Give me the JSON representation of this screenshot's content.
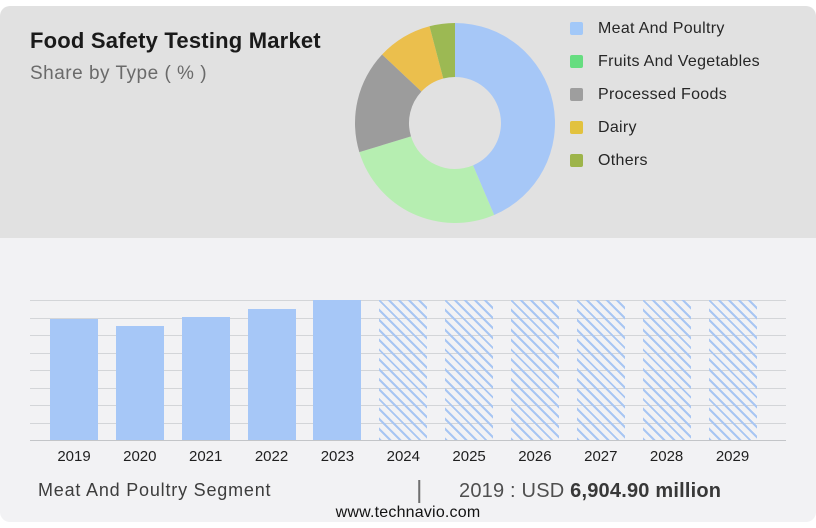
{
  "header": {
    "title": "Food Safety Testing Market",
    "subtitle": "Share by Type ( % )"
  },
  "colors": {
    "top_panel_bg": "#e1e1e1",
    "bottom_panel_bg": "#f2f2f4",
    "bar_accent_blue": "#a6c7f7",
    "hatch_line_blue": "#a8c6f3",
    "gridline": "#d3d5d8"
  },
  "chart_data": [
    {
      "type": "pie",
      "donut": true,
      "title": "Food Safety Testing Market - Share by Type ( % )",
      "labels": [
        "Meat And Poultry",
        "Fruits And Vegetables",
        "Processed Foods",
        "Dairy",
        "Others"
      ],
      "values": [
        43.6,
        26.7,
        16.7,
        8.9,
        4.1
      ],
      "unit": "%",
      "colors": [
        "#a6c7f7",
        "#b6eeb1",
        "#9c9c9c",
        "#ebbf4d",
        "#9cb953"
      ],
      "legend_colors": [
        "#a2c8f8",
        "#66dd80",
        "#9e9e9e",
        "#e2c23e",
        "#9db44a"
      ],
      "legend_position": "right",
      "start_angle_deg": 0,
      "direction": "clockwise"
    },
    {
      "type": "bar",
      "categories": [
        "2019",
        "2020",
        "2021",
        "2022",
        "2023",
        "2024",
        "2025",
        "2026",
        "2027",
        "2028",
        "2029"
      ],
      "series": [
        {
          "name": "Meat And Poultry Segment (USD million)",
          "values": [
            6904.9,
            6505,
            7019,
            7476,
            7989,
            null,
            null,
            null,
            null,
            null,
            null
          ]
        }
      ],
      "heights_rel": [
        0.864,
        0.814,
        0.879,
        0.936,
        1,
        1,
        1,
        1,
        1,
        1,
        1
      ],
      "forecast": [
        false,
        false,
        false,
        false,
        false,
        true,
        true,
        true,
        true,
        true,
        true
      ],
      "solid_bar_style": "solid",
      "forecast_bar_style": "diagonal-hatch",
      "bar_color": "#a6c7f7",
      "grid": true,
      "y_axis_labels_shown": false,
      "known_label": "2019 : USD 6,904.90 million"
    }
  ],
  "footer": {
    "segment_label": "Meat And Poultry Segment",
    "separator": "|",
    "value_prefix": "2019 : USD ",
    "value_bold": "6,904.90 million",
    "website": "www.technavio.com"
  }
}
